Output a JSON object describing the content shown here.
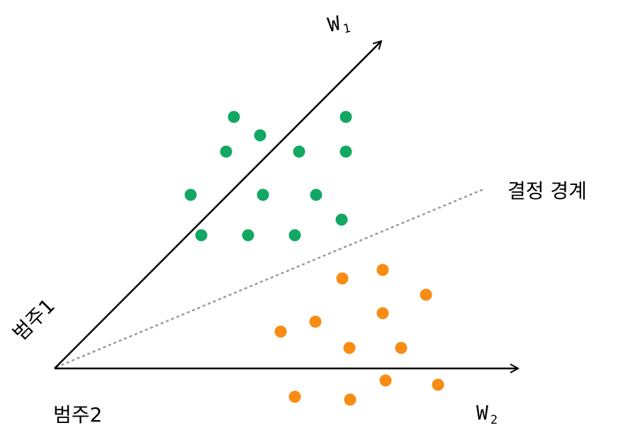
{
  "axes": {
    "w1": {
      "label": "W",
      "subscript": "1"
    },
    "w2": {
      "label": "W",
      "subscript": "2"
    }
  },
  "labels": {
    "decision_boundary": "결정 경계",
    "class1": "범주1",
    "class2": "범주2"
  },
  "colors": {
    "class1": "#12a864",
    "class2": "#f98c12",
    "boundary": "#999999",
    "axis": "#000000"
  }
}
